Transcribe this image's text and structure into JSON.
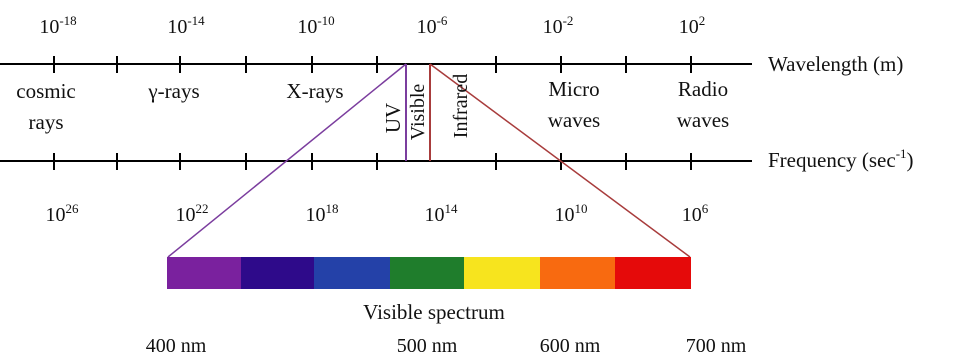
{
  "wavelength": {
    "label": "Wavelength (m)",
    "ticks": [
      {
        "base": "10",
        "exp": "-18"
      },
      {
        "base": "10",
        "exp": "-14"
      },
      {
        "base": "10",
        "exp": "-10"
      },
      {
        "base": "10",
        "exp": "-6"
      },
      {
        "base": "10",
        "exp": "-2"
      },
      {
        "base": "10",
        "exp": "2"
      }
    ]
  },
  "frequency": {
    "label": "Frequency (sec",
    "label_exp": "-1",
    "label_end": ")",
    "ticks": [
      {
        "base": "10",
        "exp": "26"
      },
      {
        "base": "10",
        "exp": "22"
      },
      {
        "base": "10",
        "exp": "18"
      },
      {
        "base": "10",
        "exp": "14"
      },
      {
        "base": "10",
        "exp": "10"
      },
      {
        "base": "10",
        "exp": "6"
      }
    ]
  },
  "regions": {
    "cosmic_l1": "cosmic",
    "cosmic_l2": "rays",
    "gamma": "γ-rays",
    "xrays": "X-rays",
    "uv": "UV",
    "visible": "Visible",
    "infrared": "Infrared",
    "micro_l1": "Micro",
    "micro_l2": "waves",
    "radio_l1": "Radio",
    "radio_l2": "waves"
  },
  "spectrum": {
    "label": "Visible spectrum",
    "colors": [
      "#7a219e",
      "#2e0a8a",
      "#2441a8",
      "#1f7d2c",
      "#f7e41e",
      "#f86a10",
      "#e50a0a"
    ],
    "nm_labels": [
      "400 nm",
      "500 nm",
      "600 nm",
      "700 nm"
    ]
  },
  "colors": {
    "axis": "#000000",
    "visible_left_line": "#7b3d9e",
    "visible_right_line": "#a83c3c"
  }
}
